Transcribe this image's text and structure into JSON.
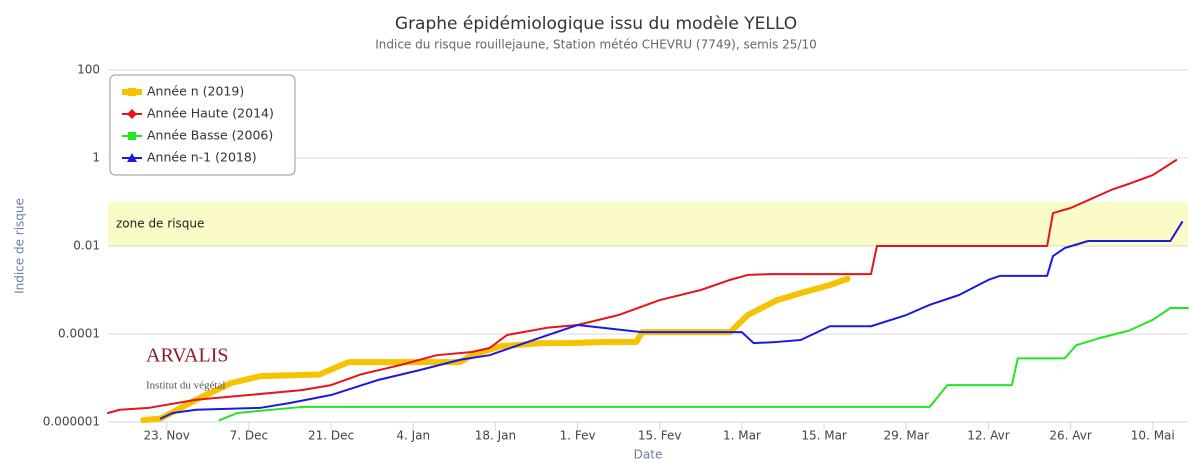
{
  "chart_data": {
    "type": "line",
    "title": "Graphe épidémiologique issu du modèle YELLO",
    "subtitle": "Indice du risque rouillejaune, Station météo CHEVRU (7749), semis 25/10",
    "y_label": "Indice de risque",
    "x_label": "Date",
    "log_y": true,
    "grid": true,
    "legend": "top-left",
    "ylim": [
      1e-06,
      100
    ],
    "yticks": [
      {
        "value": 1e-06,
        "label": "0.000001"
      },
      0.0001,
      0.01,
      1,
      100
    ],
    "xlim": [
      12,
      196
    ],
    "xticks": [
      {
        "value": 22,
        "label": "23. Nov"
      },
      {
        "value": 36,
        "label": "7. Dec"
      },
      {
        "value": 50,
        "label": "21. Dec"
      },
      {
        "value": 64,
        "label": "4. Jan"
      },
      {
        "value": 78,
        "label": "18. Jan"
      },
      {
        "value": 92,
        "label": "1. Fev"
      },
      {
        "value": 106,
        "label": "15. Fev"
      },
      {
        "value": 120,
        "label": "1. Mar"
      },
      {
        "value": 134,
        "label": "15. Mar"
      },
      {
        "value": 148,
        "label": "29. Mar"
      },
      {
        "value": 162,
        "label": "12. Avr"
      },
      {
        "value": 176,
        "label": "26. Avr"
      },
      {
        "value": 190,
        "label": "10. Mai"
      }
    ],
    "plot_bands": [
      {
        "from": 0.01,
        "to": 0.1,
        "label": "zone de risque",
        "color": "#fbfbc8"
      }
    ],
    "series": [
      {
        "name": "Année n (2019)",
        "color": "#f7c200",
        "width": 6,
        "marker": "square",
        "x": [
          18,
          21,
          27,
          33,
          38,
          48,
          53,
          72,
          74,
          79,
          86,
          91,
          96,
          102,
          103,
          118,
          121,
          126,
          130,
          135,
          138
        ],
        "values": [
          1.1e-06,
          1.2e-06,
          3.2e-06,
          7.7e-06,
          1.1e-05,
          1.2e-05,
          2.3e-05,
          2.3e-05,
          3.3e-05,
          5.3e-05,
          6.2e-05,
          6.2e-05,
          6.6e-05,
          6.6e-05,
          0.00011,
          0.00011,
          0.00027,
          0.00059,
          0.00085,
          0.0013,
          0.0018
        ]
      },
      {
        "name": "Année Haute (2014)",
        "color": "#e8131b",
        "width": 2,
        "marker": "diamond",
        "x": [
          12,
          14,
          19,
          27,
          36,
          45,
          50,
          55,
          62,
          68,
          74,
          77,
          80,
          87,
          92,
          99,
          106,
          113,
          118,
          121,
          125,
          142,
          143,
          172,
          173,
          176,
          179,
          183,
          186,
          190,
          194
        ],
        "values": [
          1.6e-06,
          1.9e-06,
          2.1e-06,
          3.2e-06,
          4.1e-06,
          5.3e-06,
          6.9e-06,
          1.2e-05,
          2e-05,
          3.3e-05,
          3.9e-05,
          4.8e-05,
          9.5e-05,
          0.00014,
          0.00016,
          0.00027,
          0.00059,
          0.001,
          0.0017,
          0.0022,
          0.0023,
          0.0023,
          0.01,
          0.01,
          0.056,
          0.073,
          0.11,
          0.19,
          0.26,
          0.41,
          0.9
        ]
      },
      {
        "name": "Année Basse (2006)",
        "color": "#22e622",
        "width": 2,
        "marker": "square",
        "x": [
          31,
          34,
          45,
          152,
          155,
          166,
          167,
          175,
          177,
          181,
          186,
          190,
          193,
          196
        ],
        "values": [
          1.1e-06,
          1.6e-06,
          2.2e-06,
          2.2e-06,
          6.9e-06,
          6.9e-06,
          2.8e-05,
          2.8e-05,
          5.6e-05,
          8.1e-05,
          0.00012,
          0.00021,
          0.00039,
          0.00039
        ]
      },
      {
        "name": "Année n-1 (2018)",
        "color": "#1a1ae0",
        "width": 2,
        "marker": "triangle",
        "x": [
          21,
          23,
          27,
          38,
          43,
          50,
          58,
          65,
          72,
          77,
          82,
          87,
          92,
          103,
          120,
          122,
          126,
          130,
          135,
          142,
          148,
          152,
          157,
          162,
          164,
          172,
          173,
          175,
          179,
          193,
          195
        ],
        "values": [
          1.2e-06,
          1.6e-06,
          1.9e-06,
          2.1e-06,
          2.7e-06,
          4.1e-06,
          9e-06,
          1.5e-05,
          2.6e-05,
          3.3e-05,
          5.6e-05,
          9.5e-05,
          0.00016,
          0.00011,
          0.00011,
          6.2e-05,
          6.6e-05,
          7.3e-05,
          0.00015,
          0.00015,
          0.00027,
          0.00046,
          0.00077,
          0.0017,
          0.0021,
          0.0021,
          0.0059,
          0.009,
          0.013,
          0.013,
          0.035
        ]
      }
    ]
  },
  "logo": {
    "name": "ARVALIS",
    "tagline": "Institut du végétal"
  }
}
